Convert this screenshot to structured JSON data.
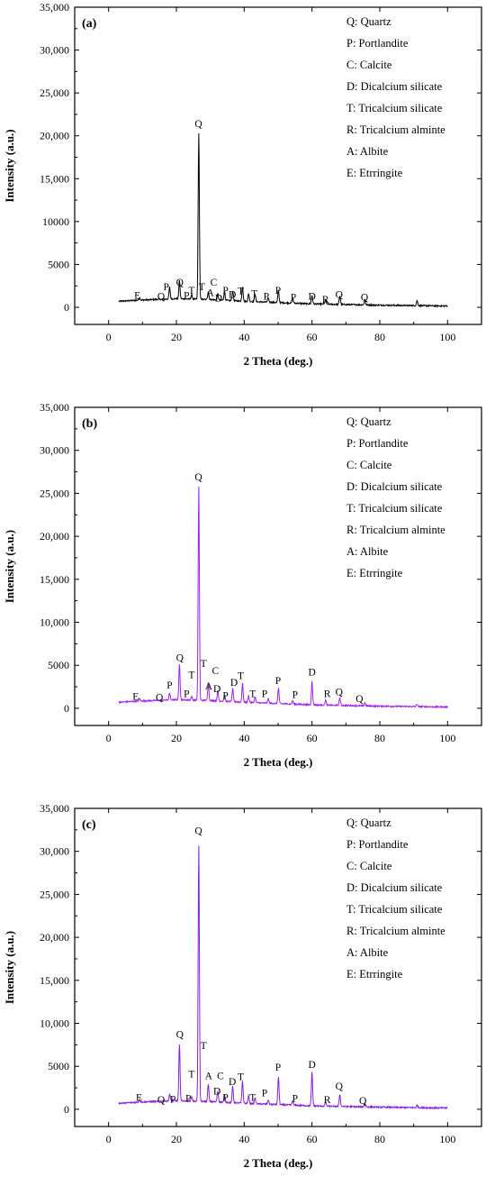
{
  "chart_data": [
    {
      "panel_label": "(a)",
      "type": "line",
      "xlabel": "2 Theta (deg.)",
      "ylabel": "Intensity (a.u.)",
      "xlim": [
        -10,
        110
      ],
      "ylim": [
        -2000,
        35000
      ],
      "xticks": [
        0,
        20,
        40,
        60,
        80,
        100
      ],
      "yticks": [
        0,
        5000,
        10000,
        15000,
        20000,
        25000,
        30000,
        35000
      ],
      "ytick_labels": [
        "0",
        "5000",
        "10000",
        "15,000",
        "20,000",
        "25,000",
        "30,000",
        "35,000"
      ],
      "line_color": "#000000",
      "legend": [
        "Q: Quartz",
        "P: Portlandite",
        "C: Calcite",
        "D: Dicalcium silicate",
        "T: Tricalcium silicate",
        "R: Tricalcium alminte",
        "A: Albite",
        "E: Etrringite"
      ],
      "baseline": [
        [
          3,
          700
        ],
        [
          10,
          850
        ],
        [
          20,
          1000
        ],
        [
          30,
          900
        ],
        [
          40,
          700
        ],
        [
          60,
          400
        ],
        [
          80,
          250
        ],
        [
          100,
          150
        ]
      ],
      "peaks": [
        [
          9.1,
          300
        ],
        [
          18.0,
          1400
        ],
        [
          20.9,
          2100
        ],
        [
          24.5,
          500
        ],
        [
          26.6,
          19300
        ],
        [
          29.4,
          900
        ],
        [
          32.2,
          700
        ],
        [
          34.2,
          1000
        ],
        [
          36.6,
          1100
        ],
        [
          39.5,
          1700
        ],
        [
          41.3,
          900
        ],
        [
          43.2,
          900
        ],
        [
          47.1,
          500
        ],
        [
          50.1,
          1400
        ],
        [
          54.3,
          600
        ],
        [
          60.0,
          1000
        ],
        [
          64.0,
          500
        ],
        [
          68.2,
          1000
        ],
        [
          75.6,
          600
        ],
        [
          91.0,
          600
        ]
      ],
      "peak_labels": [
        {
          "text": "E",
          "x": 8.5,
          "y": 1000
        },
        {
          "text": "Q",
          "x": 15.5,
          "y": 900
        },
        {
          "text": "P",
          "x": 17,
          "y": 2000
        },
        {
          "text": "Q",
          "x": 21,
          "y": 2500
        },
        {
          "text": "P",
          "x": 23,
          "y": 1000
        },
        {
          "text": "T",
          "x": 24.5,
          "y": 1600
        },
        {
          "text": "Q",
          "x": 26.5,
          "y": 21000
        },
        {
          "text": "T",
          "x": 27.5,
          "y": 2000
        },
        {
          "text": "C",
          "x": 31,
          "y": 2500
        },
        {
          "text": "A",
          "x": 30,
          "y": 1300
        },
        {
          "text": "D",
          "x": 32.5,
          "y": 700
        },
        {
          "text": "P",
          "x": 34.5,
          "y": 1600
        },
        {
          "text": "D",
          "x": 36.5,
          "y": 1100
        },
        {
          "text": "T",
          "x": 39,
          "y": 1500
        },
        {
          "text": "T",
          "x": 43,
          "y": 1200
        },
        {
          "text": "P",
          "x": 46.5,
          "y": 900
        },
        {
          "text": "P",
          "x": 50,
          "y": 1600
        },
        {
          "text": "P",
          "x": 54.5,
          "y": 800
        },
        {
          "text": "D",
          "x": 60,
          "y": 900
        },
        {
          "text": "R",
          "x": 64,
          "y": 500
        },
        {
          "text": "Q",
          "x": 68,
          "y": 1100
        },
        {
          "text": "Q",
          "x": 75.5,
          "y": 800
        }
      ]
    },
    {
      "panel_label": "(b)",
      "type": "line",
      "xlabel": "2 Theta (deg.)",
      "ylabel": "Intensity (a.u.)",
      "xlim": [
        -10,
        110
      ],
      "ylim": [
        -2000,
        35000
      ],
      "xticks": [
        0,
        20,
        40,
        60,
        80,
        100
      ],
      "yticks": [
        0,
        5000,
        10000,
        15000,
        20000,
        25000,
        30000,
        35000
      ],
      "ytick_labels": [
        "0",
        "5000",
        "10,000",
        "15,000",
        "20,000",
        "25,000",
        "30,000",
        "35,000"
      ],
      "line_color": "#a020f0",
      "legend": [
        "Q: Quartz",
        "P: Portlandite",
        "C: Calcite",
        "D: Dicalcium silicate",
        "T: Tricalcium silicate",
        "R: Tricalcium alminte",
        "A: Albite",
        "E: Etrringite"
      ],
      "baseline": [
        [
          3,
          700
        ],
        [
          10,
          850
        ],
        [
          20,
          1000
        ],
        [
          30,
          900
        ],
        [
          40,
          700
        ],
        [
          60,
          400
        ],
        [
          80,
          250
        ],
        [
          100,
          150
        ]
      ],
      "peaks": [
        [
          9.1,
          300
        ],
        [
          18.0,
          800
        ],
        [
          20.9,
          4200
        ],
        [
          24.5,
          400
        ],
        [
          26.6,
          24800
        ],
        [
          29.4,
          2000
        ],
        [
          32.2,
          1200
        ],
        [
          34.2,
          700
        ],
        [
          36.6,
          1500
        ],
        [
          39.5,
          2200
        ],
        [
          41.3,
          800
        ],
        [
          43.2,
          700
        ],
        [
          47.1,
          500
        ],
        [
          50.1,
          1800
        ],
        [
          54.3,
          400
        ],
        [
          60.0,
          2700
        ],
        [
          64.0,
          600
        ],
        [
          68.2,
          900
        ],
        [
          75.6,
          400
        ],
        [
          91.0,
          300
        ]
      ],
      "peak_labels": [
        {
          "text": "E",
          "x": 8,
          "y": 1000
        },
        {
          "text": "Q",
          "x": 15,
          "y": 900
        },
        {
          "text": "P",
          "x": 18,
          "y": 2300
        },
        {
          "text": "Q",
          "x": 21,
          "y": 5500
        },
        {
          "text": "P",
          "x": 23,
          "y": 1300
        },
        {
          "text": "T",
          "x": 24.5,
          "y": 3500
        },
        {
          "text": "Q",
          "x": 26.5,
          "y": 26500
        },
        {
          "text": "T",
          "x": 28,
          "y": 4800
        },
        {
          "text": "C",
          "x": 31.5,
          "y": 4000
        },
        {
          "text": "A",
          "x": 29.5,
          "y": 2200
        },
        {
          "text": "D",
          "x": 32,
          "y": 1900
        },
        {
          "text": "P",
          "x": 34.5,
          "y": 1100
        },
        {
          "text": "D",
          "x": 37,
          "y": 2600
        },
        {
          "text": "T",
          "x": 39,
          "y": 3400
        },
        {
          "text": "T",
          "x": 42.5,
          "y": 1300
        },
        {
          "text": "P",
          "x": 46,
          "y": 1300
        },
        {
          "text": "P",
          "x": 50,
          "y": 2800
        },
        {
          "text": "P",
          "x": 55,
          "y": 1200
        },
        {
          "text": "D",
          "x": 60,
          "y": 3800
        },
        {
          "text": "R",
          "x": 64.5,
          "y": 1300
        },
        {
          "text": "Q",
          "x": 68,
          "y": 1500
        },
        {
          "text": "Q",
          "x": 74,
          "y": 700
        }
      ]
    },
    {
      "panel_label": "(c)",
      "type": "line",
      "xlabel": "2 Theta (deg.)",
      "ylabel": "Intensity (a.u.)",
      "xlim": [
        -10,
        110
      ],
      "ylim": [
        -2000,
        35000
      ],
      "xticks": [
        0,
        20,
        40,
        60,
        80,
        100
      ],
      "yticks": [
        0,
        5000,
        10000,
        15000,
        20000,
        25000,
        30000,
        35000
      ],
      "ytick_labels": [
        "0",
        "5000",
        "10,000",
        "15,000",
        "20,000",
        "25,000",
        "30,000",
        "35,000"
      ],
      "line_color": "#8a1fd6",
      "legend": [
        "Q: Quartz",
        "P: Portlandite",
        "C: Calcite",
        "D: Dicalcium silicate",
        "T: Tricalcium silicate",
        "R: Tricalcium alminte",
        "A: Albite",
        "E: Etrringite"
      ],
      "baseline": [
        [
          3,
          700
        ],
        [
          10,
          850
        ],
        [
          20,
          1000
        ],
        [
          30,
          900
        ],
        [
          40,
          700
        ],
        [
          60,
          400
        ],
        [
          80,
          250
        ],
        [
          100,
          150
        ]
      ],
      "peaks": [
        [
          9.1,
          300
        ],
        [
          18.0,
          800
        ],
        [
          20.9,
          6500
        ],
        [
          24.5,
          500
        ],
        [
          26.6,
          29800
        ],
        [
          29.4,
          2000
        ],
        [
          32.2,
          1300
        ],
        [
          34.2,
          900
        ],
        [
          36.6,
          1900
        ],
        [
          39.5,
          2600
        ],
        [
          41.3,
          900
        ],
        [
          43.2,
          700
        ],
        [
          47.1,
          500
        ],
        [
          50.1,
          3200
        ],
        [
          54.3,
          500
        ],
        [
          60.0,
          3900
        ],
        [
          64.0,
          500
        ],
        [
          68.2,
          1400
        ],
        [
          75.6,
          400
        ],
        [
          91.0,
          300
        ]
      ],
      "peak_labels": [
        {
          "text": "E",
          "x": 9,
          "y": 1000
        },
        {
          "text": "Q",
          "x": 15.5,
          "y": 700
        },
        {
          "text": "P",
          "x": 19,
          "y": 800
        },
        {
          "text": "Q",
          "x": 21,
          "y": 8300
        },
        {
          "text": "P",
          "x": 23.5,
          "y": 900
        },
        {
          "text": "T",
          "x": 24.5,
          "y": 3700
        },
        {
          "text": "Q",
          "x": 26.5,
          "y": 32000
        },
        {
          "text": "T",
          "x": 28,
          "y": 7000
        },
        {
          "text": "A",
          "x": 29.5,
          "y": 3500
        },
        {
          "text": "C",
          "x": 33,
          "y": 3500
        },
        {
          "text": "D",
          "x": 32,
          "y": 1700
        },
        {
          "text": "P",
          "x": 34.5,
          "y": 1000
        },
        {
          "text": "D",
          "x": 36.5,
          "y": 2800
        },
        {
          "text": "T",
          "x": 39,
          "y": 3400
        },
        {
          "text": "T",
          "x": 42.5,
          "y": 1000
        },
        {
          "text": "P",
          "x": 46,
          "y": 1500
        },
        {
          "text": "P",
          "x": 50,
          "y": 4500
        },
        {
          "text": "P",
          "x": 55,
          "y": 900
        },
        {
          "text": "D",
          "x": 60,
          "y": 4800
        },
        {
          "text": "R",
          "x": 64.5,
          "y": 700
        },
        {
          "text": "Q",
          "x": 68,
          "y": 2300
        },
        {
          "text": "Q",
          "x": 75,
          "y": 600
        }
      ]
    }
  ]
}
